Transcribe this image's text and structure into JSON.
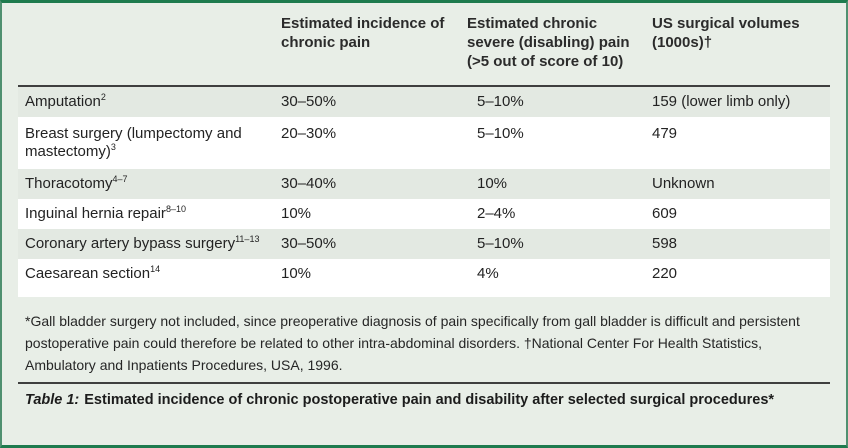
{
  "colors": {
    "page_background": "#e8eee7",
    "row_tint": "#e3e9e2",
    "row_white": "#ffffff",
    "border_green": "#1e7b4e",
    "rule_dark": "#3f3f3f"
  },
  "header": {
    "columns": [
      "",
      "Estimated incidence of chronic pain",
      "Estimated chronic severe (disabling) pain (>5 out of score of 10)",
      "US surgical volumes (1000s)†"
    ]
  },
  "rows": [
    {
      "procedure": "Amputation",
      "ref": "2",
      "chronic_pain": "30–50%",
      "severe_pain": "5–10%",
      "volume": "159 (lower limb only)"
    },
    {
      "procedure": "Breast surgery (lumpectomy and mastectomy)",
      "ref": "3",
      "chronic_pain": "20–30%",
      "severe_pain": "5–10%",
      "volume": "479"
    },
    {
      "procedure": "Thoracotomy",
      "ref": "4–7",
      "chronic_pain": "30–40%",
      "severe_pain": "10%",
      "volume": "Unknown"
    },
    {
      "procedure": "Inguinal hernia repair",
      "ref": "8–10",
      "chronic_pain": "10%",
      "severe_pain": "2–4%",
      "volume": "609"
    },
    {
      "procedure": "Coronary artery bypass surgery",
      "ref": "11–13",
      "chronic_pain": "30–50%",
      "severe_pain": "5–10%",
      "volume": "598"
    },
    {
      "procedure": "Caesarean section",
      "ref": "14",
      "chronic_pain": "10%",
      "severe_pain": "4%",
      "volume": "220"
    }
  ],
  "footnote": "*Gall bladder surgery not included, since preoperative diagnosis of pain specifically from gall bladder is difficult and persistent postoperative pain could therefore be related to other intra-abdominal disorders. †National Center For Health Statistics, Ambulatory and Inpatients Procedures, USA, 1996.",
  "caption": {
    "label": "Table 1:",
    "text": "Estimated incidence of chronic postoperative pain and disability after selected surgical procedures*"
  }
}
